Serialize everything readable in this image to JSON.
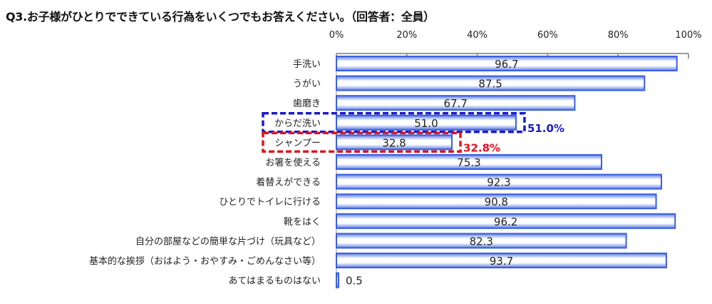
{
  "chart_data": {
    "type": "bar",
    "orientation": "horizontal",
    "title": "Q3.お子様がひとりでできている行為をいくつでもお答えください。（回答者：全員）",
    "categories": [
      "手洗い",
      "うがい",
      "歯磨き",
      "からだ洗い",
      "シャンプー",
      "お箸を使える",
      "着替えができる",
      "ひとりでトイレに行ける",
      "靴をはく",
      "自分の部屋などの簡単な片づけ（玩具など）",
      "基本的な挨拶（おはよう・おやすみ・ごめんなさい等）",
      "あてはまるものはない"
    ],
    "values": [
      96.7,
      87.5,
      67.7,
      51.0,
      32.8,
      75.3,
      92.3,
      90.8,
      96.2,
      82.3,
      93.7,
      0.5
    ],
    "value_labels": [
      "96.7",
      "87.5",
      "67.7",
      "51.0",
      "32.8",
      "75.3",
      "92.3",
      "90.8",
      "96.2",
      "82.3",
      "93.7",
      "0.5"
    ],
    "xlim": [
      0,
      100
    ],
    "xticks": [
      "0%",
      "20%",
      "40%",
      "60%",
      "80%",
      "100%"
    ],
    "x_axis_position": "top",
    "grid": false,
    "bar_color": "#3a5fdc",
    "highlights": [
      {
        "category": "からだ洗い",
        "label": "51.0%",
        "color": "#1a1acc"
      },
      {
        "category": "シャンプー",
        "label": "32.8%",
        "color": "#e0141e"
      }
    ]
  }
}
